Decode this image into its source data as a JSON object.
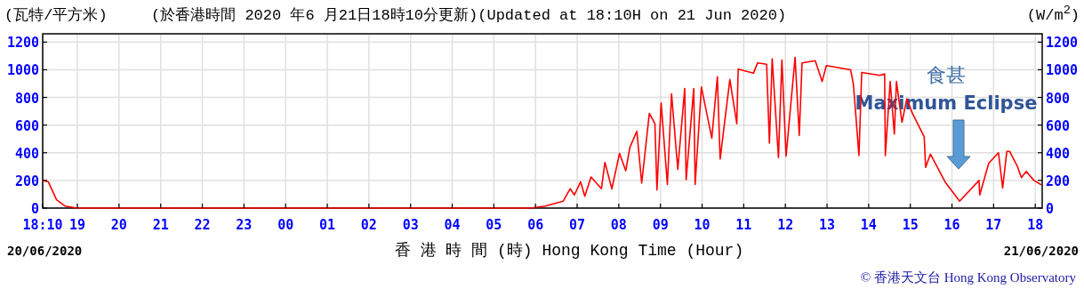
{
  "chart_data": {
    "type": "line",
    "title": "(於香港時間 2020 年6 月21日18時10分更新)(Updated at 18:10H on 21 Jun 2020)",
    "ylabel": "(瓦特/平方米)",
    "y2label": "(W/m$^{2}$)",
    "xlabel": "香 港 時 間 (時) Hong Kong Time (Hour)",
    "color": "#ff0000",
    "grid": true,
    "line_style": "solid",
    "xlim": [
      "2020-06-20T18:10",
      "2020-06-21T18:10"
    ],
    "ylim": [
      0,
      1260
    ],
    "y2lim": [
      0,
      1260
    ],
    "xticks": [
      {
        "value": "2020-06-20T18:10",
        "label": "18:10"
      },
      {
        "value": "2020-06-20T19:00",
        "label": "19"
      },
      {
        "value": "2020-06-20T20:00",
        "label": "20"
      },
      {
        "value": "2020-06-20T21:00",
        "label": "21"
      },
      {
        "value": "2020-06-20T22:00",
        "label": "22"
      },
      {
        "value": "2020-06-20T23:00",
        "label": "23"
      },
      {
        "value": "2020-06-21T00:00",
        "label": "00"
      },
      {
        "value": "2020-06-21T01:00",
        "label": "01"
      },
      {
        "value": "2020-06-21T02:00",
        "label": "02"
      },
      {
        "value": "2020-06-21T03:00",
        "label": "03"
      },
      {
        "value": "2020-06-21T04:00",
        "label": "04"
      },
      {
        "value": "2020-06-21T05:00",
        "label": "05"
      },
      {
        "value": "2020-06-21T06:00",
        "label": "06"
      },
      {
        "value": "2020-06-21T07:00",
        "label": "07"
      },
      {
        "value": "2020-06-21T08:00",
        "label": "08"
      },
      {
        "value": "2020-06-21T09:00",
        "label": "09"
      },
      {
        "value": "2020-06-21T10:00",
        "label": "10"
      },
      {
        "value": "2020-06-21T11:00",
        "label": "11"
      },
      {
        "value": "2020-06-21T12:00",
        "label": "12"
      },
      {
        "value": "2020-06-21T13:00",
        "label": "13"
      },
      {
        "value": "2020-06-21T14:00",
        "label": "14"
      },
      {
        "value": "2020-06-21T15:00",
        "label": "15"
      },
      {
        "value": "2020-06-21T16:00",
        "label": "16"
      },
      {
        "value": "2020-06-21T17:00",
        "label": "17"
      },
      {
        "value": "2020-06-21T18:00",
        "label": "18"
      }
    ],
    "yticks": [
      0,
      200,
      400,
      600,
      800,
      1000,
      1200
    ],
    "y2ticks": [
      0,
      200,
      400,
      600,
      800,
      1000,
      1200
    ],
    "x": [
      "2020-06-20T18:10",
      "2020-06-20T18:18",
      "2020-06-20T18:30",
      "2020-06-20T18:42",
      "2020-06-20T19:00",
      "2020-06-21T05:54",
      "2020-06-21T06:00",
      "2020-06-21T06:14",
      "2020-06-21T06:40",
      "2020-06-21T06:50",
      "2020-06-21T06:56",
      "2020-06-21T07:05",
      "2020-06-21T07:11",
      "2020-06-21T07:20",
      "2020-06-21T07:35",
      "2020-06-21T07:40",
      "2020-06-21T07:50",
      "2020-06-21T08:01",
      "2020-06-21T08:10",
      "2020-06-21T08:16",
      "2020-06-21T08:26",
      "2020-06-21T08:33",
      "2020-06-21T08:44",
      "2020-06-21T08:52",
      "2020-06-21T08:55",
      "2020-06-21T09:01",
      "2020-06-21T09:10",
      "2020-06-21T09:16",
      "2020-06-21T09:25",
      "2020-06-21T09:35",
      "2020-06-21T09:37",
      "2020-06-21T09:48",
      "2020-06-21T09:50",
      "2020-06-21T09:59",
      "2020-06-21T10:14",
      "2020-06-21T10:22",
      "2020-06-21T10:26",
      "2020-06-21T10:40",
      "2020-06-21T10:50",
      "2020-06-21T10:52",
      "2020-06-21T11:14",
      "2020-06-21T11:20",
      "2020-06-21T11:33",
      "2020-06-21T11:37",
      "2020-06-21T11:41",
      "2020-06-21T11:50",
      "2020-06-21T11:55",
      "2020-06-21T12:01",
      "2020-06-21T12:14",
      "2020-06-21T12:20",
      "2020-06-21T12:24",
      "2020-06-21T12:43",
      "2020-06-21T12:53",
      "2020-06-21T12:59",
      "2020-06-21T13:34",
      "2020-06-21T13:38",
      "2020-06-21T13:46",
      "2020-06-21T13:50",
      "2020-06-21T14:16",
      "2020-06-21T14:23",
      "2020-06-21T14:24",
      "2020-06-21T14:31",
      "2020-06-21T14:37",
      "2020-06-21T14:40",
      "2020-06-21T14:48",
      "2020-06-21T14:55",
      "2020-06-21T15:03",
      "2020-06-21T15:20",
      "2020-06-21T15:22",
      "2020-06-21T15:29",
      "2020-06-21T15:50",
      "2020-06-21T16:11",
      "2020-06-21T16:39",
      "2020-06-21T16:40",
      "2020-06-21T16:53",
      "2020-06-21T17:07",
      "2020-06-21T17:13",
      "2020-06-21T17:19",
      "2020-06-21T17:23",
      "2020-06-21T17:34",
      "2020-06-21T17:40",
      "2020-06-21T17:47",
      "2020-06-21T17:58",
      "2020-06-21T18:08"
    ],
    "values": [
      200,
      190,
      60,
      15,
      0,
      0,
      5,
      15,
      50,
      140,
      95,
      190,
      85,
      225,
      140,
      330,
      140,
      395,
      270,
      440,
      555,
      180,
      685,
      610,
      130,
      760,
      170,
      825,
      280,
      865,
      205,
      865,
      170,
      875,
      505,
      950,
      355,
      930,
      610,
      1005,
      975,
      1050,
      1040,
      470,
      1080,
      365,
      1070,
      375,
      1090,
      525,
      1050,
      1065,
      915,
      1030,
      1000,
      895,
      380,
      980,
      960,
      970,
      380,
      915,
      535,
      915,
      620,
      790,
      685,
      515,
      295,
      390,
      190,
      50,
      200,
      95,
      325,
      400,
      145,
      410,
      410,
      305,
      220,
      265,
      200,
      170
    ],
    "annotations": [
      "20/06/2020",
      "21/06/2020",
      "© 香港天文台 Hong Kong Observatory",
      "食甚",
      "Maximum Eclipse"
    ]
  }
}
